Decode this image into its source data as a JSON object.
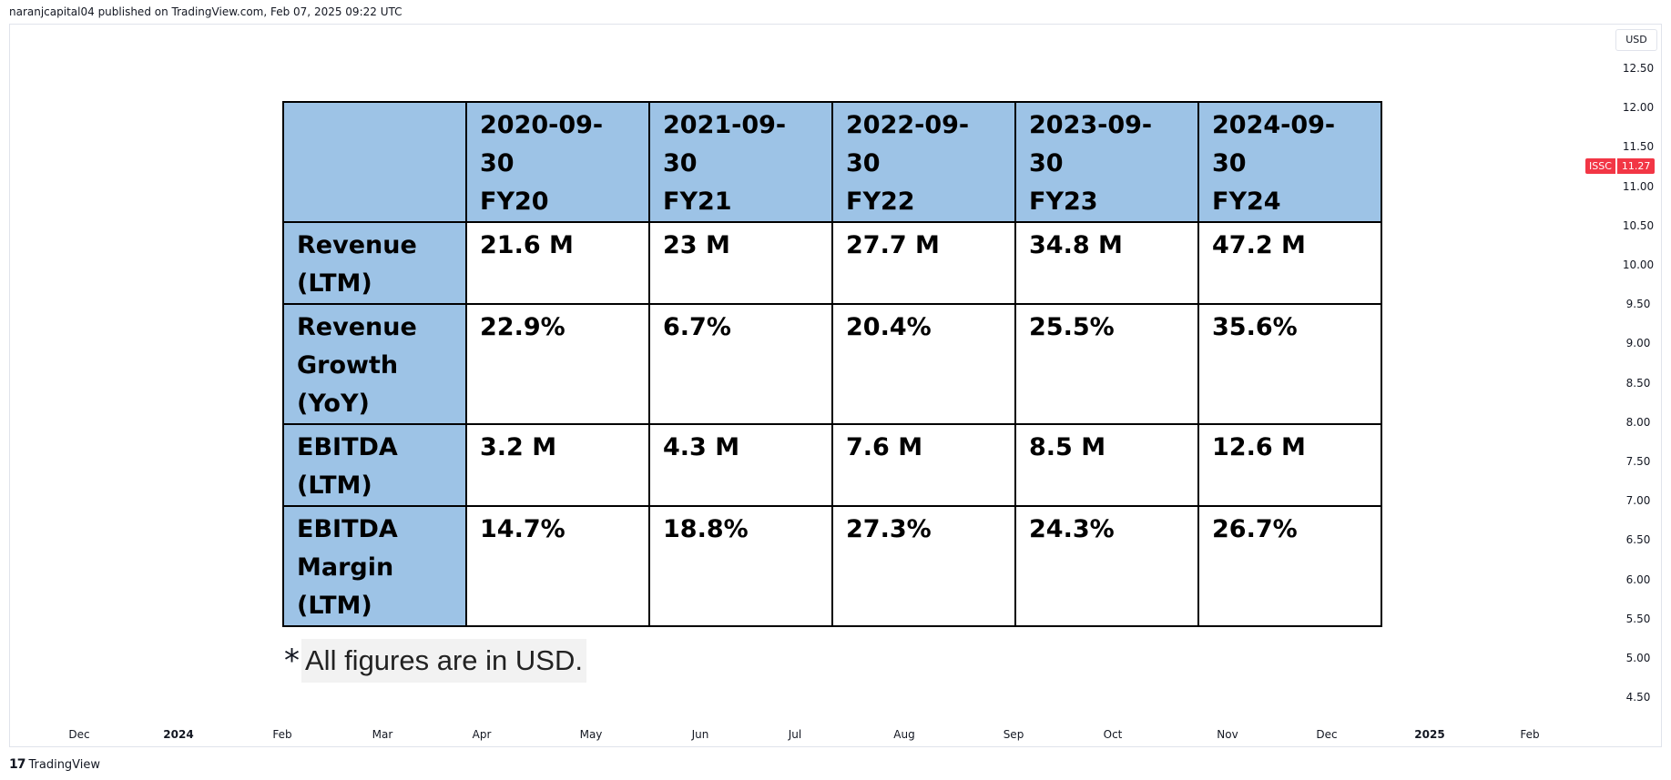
{
  "header": {
    "published_line": "naranjcapital04 published on TradingView.com, Feb 07, 2025 09:22 UTC"
  },
  "price_axis": {
    "currency": "USD",
    "labels": [
      "12.50",
      "12.00",
      "11.50",
      "11.00",
      "10.50",
      "10.00",
      "9.50",
      "9.00",
      "8.50",
      "8.00",
      "7.50",
      "7.00",
      "6.50",
      "6.00",
      "5.50",
      "5.00",
      "4.50"
    ],
    "ticker": "ISSC",
    "last_price": "11.27",
    "last_price_color": "#f23645"
  },
  "time_axis": {
    "labels": [
      {
        "text": "Dec",
        "bold": false
      },
      {
        "text": "2024",
        "bold": true
      },
      {
        "text": "Feb",
        "bold": false
      },
      {
        "text": "Mar",
        "bold": false
      },
      {
        "text": "Apr",
        "bold": false
      },
      {
        "text": "May",
        "bold": false
      },
      {
        "text": "Jun",
        "bold": false
      },
      {
        "text": "Jul",
        "bold": false
      },
      {
        "text": "Aug",
        "bold": false
      },
      {
        "text": "Sep",
        "bold": false
      },
      {
        "text": "Oct",
        "bold": false
      },
      {
        "text": "Nov",
        "bold": false
      },
      {
        "text": "Dec",
        "bold": false
      },
      {
        "text": "2025",
        "bold": true
      },
      {
        "text": "Feb",
        "bold": false
      }
    ]
  },
  "brand": {
    "logo": "17",
    "name": "TradingView"
  },
  "chart_data": {
    "type": "table",
    "header_fill": "#9dc3e6",
    "columns": [
      {
        "date": "2020-09-30",
        "fy": "FY20"
      },
      {
        "date": "2021-09-30",
        "fy": "FY21"
      },
      {
        "date": "2022-09-30",
        "fy": "FY22"
      },
      {
        "date": "2023-09-30",
        "fy": "FY23"
      },
      {
        "date": "2024-09-30",
        "fy": "FY24"
      }
    ],
    "rows": [
      {
        "label": [
          "Revenue",
          "(LTM)"
        ],
        "values": [
          "21.6 M",
          "23 M",
          "27.7 M",
          "34.8 M",
          "47.2 M"
        ]
      },
      {
        "label": [
          "Revenue",
          "Growth",
          "(YoY)"
        ],
        "values": [
          "22.9%",
          "6.7%",
          "20.4%",
          "25.5%",
          "35.6%"
        ]
      },
      {
        "label": [
          "EBITDA",
          "(LTM)"
        ],
        "values": [
          "3.2 M",
          "4.3 M",
          "7.6 M",
          "8.5 M",
          "12.6 M"
        ]
      },
      {
        "label": [
          "EBITDA",
          "Margin",
          "(LTM)"
        ],
        "values": [
          "14.7%",
          "18.8%",
          "27.3%",
          "24.3%",
          "26.7%"
        ]
      }
    ]
  },
  "footnote": {
    "star": "*",
    "text": "All figures are in USD."
  }
}
